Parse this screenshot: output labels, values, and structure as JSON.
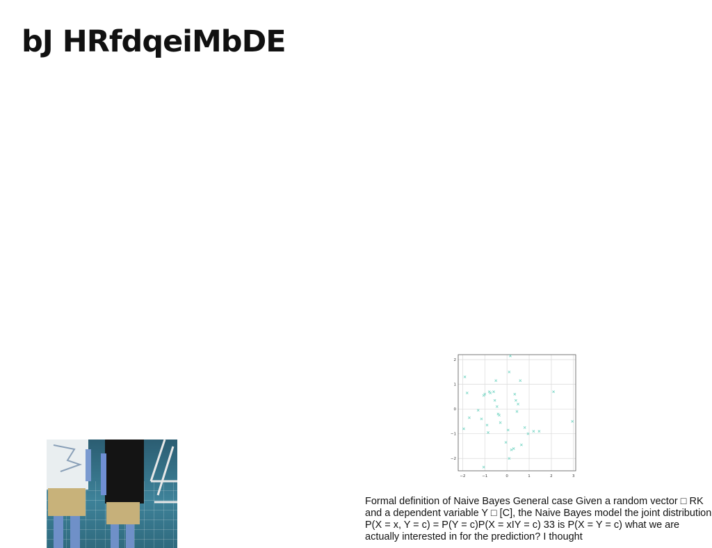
{
  "page": {
    "title": "bJ HRfdqeiMbDE",
    "caption": "Formal definition of Naive Bayes General case Given a random vector □ RK and a dependent variable Y □ [C], the Naive Bayes model the joint distribution P(X = x, Y = c) = P(Y = c)P(X = xIY = c) 33 is P(X = Y = c) what we are actually interested in for the prediction? I thought"
  },
  "colors": {
    "marker": "#7fd8c8",
    "grid": "#d9d9d9",
    "axis": "#555555"
  },
  "chart_data": {
    "type": "scatter",
    "title": "",
    "xlabel": "",
    "ylabel": "",
    "xlim": [
      -2.2,
      3.1
    ],
    "ylim": [
      -2.5,
      2.2
    ],
    "xticks": [
      "−2",
      "−1",
      "0",
      "1",
      "2",
      "3"
    ],
    "xtick_values": [
      -2,
      -1,
      0,
      1,
      2,
      3
    ],
    "yticks": [
      "2",
      "1",
      "0",
      "−1",
      "−2"
    ],
    "ytick_values": [
      2,
      1,
      0,
      -1,
      -2
    ],
    "grid": true,
    "marker": "x",
    "x": [
      -1.9,
      -1.8,
      -1.95,
      -1.7,
      -1.3,
      -1.15,
      -1.05,
      -1.0,
      -0.9,
      -0.85,
      -0.8,
      -0.75,
      -0.6,
      -0.55,
      -0.5,
      -0.45,
      -0.4,
      -0.35,
      -0.3,
      -0.05,
      0.05,
      0.1,
      0.15,
      0.2,
      0.3,
      0.35,
      0.4,
      0.45,
      0.5,
      0.6,
      0.65,
      0.8,
      0.95,
      1.2,
      1.45,
      2.1,
      2.95,
      -1.05,
      0.1
    ],
    "y": [
      1.3,
      0.65,
      -0.8,
      -0.35,
      -0.05,
      -0.4,
      0.55,
      0.6,
      -0.65,
      -0.95,
      0.7,
      0.65,
      0.7,
      0.35,
      1.15,
      0.1,
      -0.2,
      -0.25,
      -0.55,
      -1.35,
      -0.85,
      1.5,
      2.15,
      -1.65,
      -1.6,
      0.6,
      0.35,
      -0.1,
      0.2,
      1.15,
      -1.45,
      -0.75,
      -1.0,
      -0.9,
      -0.9,
      0.7,
      -0.5,
      -2.35,
      -2.0
    ]
  }
}
